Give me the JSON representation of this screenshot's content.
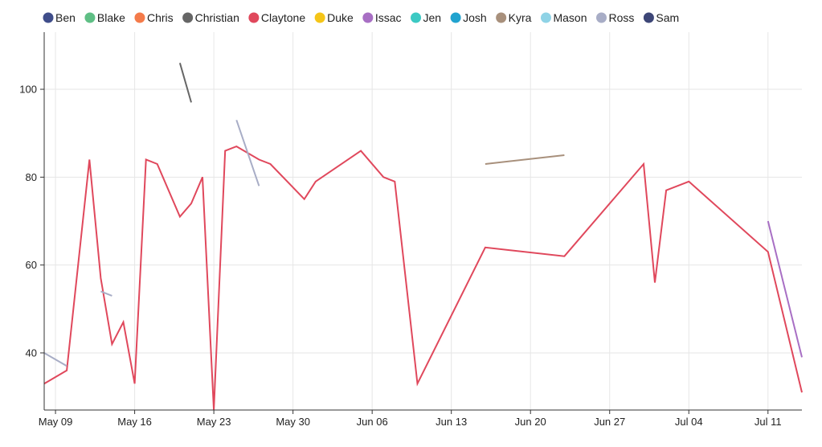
{
  "chart_data": {
    "type": "line",
    "title": "",
    "xlabel": "",
    "ylabel": "",
    "x_axis": {
      "type": "date",
      "min": "2021-05-08",
      "max": "2021-07-14",
      "ticks": [
        {
          "date": "2021-05-09",
          "label": "May 09"
        },
        {
          "date": "2021-05-16",
          "label": "May 16"
        },
        {
          "date": "2021-05-23",
          "label": "May 23"
        },
        {
          "date": "2021-05-30",
          "label": "May 30"
        },
        {
          "date": "2021-06-06",
          "label": "Jun 06"
        },
        {
          "date": "2021-06-13",
          "label": "Jun 13"
        },
        {
          "date": "2021-06-20",
          "label": "Jun 20"
        },
        {
          "date": "2021-06-27",
          "label": "Jun 27"
        },
        {
          "date": "2021-07-04",
          "label": "Jul 04"
        },
        {
          "date": "2021-07-11",
          "label": "Jul 11"
        }
      ]
    },
    "y_axis": {
      "min": 27,
      "max": 113,
      "ticks": [
        40,
        60,
        80,
        100
      ]
    },
    "grid": true,
    "legend_position": "top",
    "series": [
      {
        "name": "Ben",
        "color": "#3f4d8a",
        "points": []
      },
      {
        "name": "Blake",
        "color": "#5fbf85",
        "points": []
      },
      {
        "name": "Chris",
        "color": "#f47b4a",
        "points": []
      },
      {
        "name": "Christian",
        "color": "#666666",
        "points": [
          [
            "2021-05-20",
            106
          ],
          [
            "2021-05-21",
            97
          ]
        ]
      },
      {
        "name": "Claytone",
        "color": "#e0485c",
        "points": [
          [
            "2021-05-08",
            33
          ],
          [
            "2021-05-10",
            36
          ],
          [
            "2021-05-12",
            84
          ],
          [
            "2021-05-13",
            57
          ],
          [
            "2021-05-14",
            42
          ],
          [
            "2021-05-15",
            47
          ],
          [
            "2021-05-16",
            33
          ],
          [
            "2021-05-17",
            84
          ],
          [
            "2021-05-18",
            83
          ],
          [
            "2021-05-20",
            71
          ],
          [
            "2021-05-21",
            74
          ],
          [
            "2021-05-22",
            80
          ],
          [
            "2021-05-23",
            27
          ],
          [
            "2021-05-24",
            86
          ],
          [
            "2021-05-25",
            87
          ],
          [
            "2021-05-27",
            84
          ],
          [
            "2021-05-28",
            83
          ],
          [
            "2021-05-31",
            75
          ],
          [
            "2021-06-01",
            79
          ],
          [
            "2021-06-05",
            86
          ],
          [
            "2021-06-07",
            80
          ],
          [
            "2021-06-08",
            79
          ],
          [
            "2021-06-10",
            33
          ],
          [
            "2021-06-16",
            64
          ],
          [
            "2021-06-23",
            62
          ],
          [
            "2021-06-30",
            83
          ],
          [
            "2021-07-01",
            56
          ],
          [
            "2021-07-02",
            77
          ],
          [
            "2021-07-04",
            79
          ],
          [
            "2021-07-11",
            63
          ],
          [
            "2021-07-14",
            31
          ]
        ]
      },
      {
        "name": "Duke",
        "color": "#f5c518",
        "points": []
      },
      {
        "name": "Issac",
        "color": "#a86fc4",
        "points": [
          [
            "2021-07-11",
            70
          ],
          [
            "2021-07-14",
            39
          ]
        ]
      },
      {
        "name": "Jen",
        "color": "#3cc9c3",
        "points": []
      },
      {
        "name": "Josh",
        "color": "#21a3cf",
        "points": []
      },
      {
        "name": "Kyra",
        "color": "#a8907c",
        "points": [
          [
            "2021-06-16",
            83
          ],
          [
            "2021-06-23",
            85
          ]
        ]
      },
      {
        "name": "Mason",
        "color": "#8fd3e6",
        "points": []
      },
      {
        "name": "Ross",
        "color": "#a8adc6",
        "points": [
          [
            "2021-05-08",
            40
          ],
          [
            "2021-05-10",
            37
          ],
          null,
          [
            "2021-05-13",
            54
          ],
          [
            "2021-05-14",
            53
          ],
          null,
          [
            "2021-05-25",
            93
          ],
          [
            "2021-05-27",
            78
          ]
        ]
      },
      {
        "name": "Sam",
        "color": "#3d4677",
        "points": []
      }
    ]
  }
}
